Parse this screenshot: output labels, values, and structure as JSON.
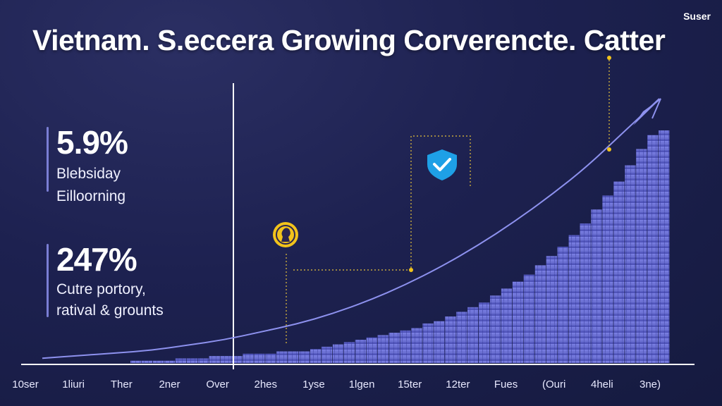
{
  "header": {
    "title": "Vietnam. S.eccera Growing Corverencte. Catter",
    "user_label": "Suser"
  },
  "stats": [
    {
      "value": "5.9%",
      "caption_lines": [
        "Blebsiday",
        "Eilloorning"
      ]
    },
    {
      "value": "247%",
      "caption_lines": [
        "Cutre portory,",
        "ratival & grounts"
      ]
    }
  ],
  "icons": {
    "shield": "shield-check-icon",
    "coin": "coin-icon",
    "trend_arrow": "trend-arrow-icon"
  },
  "colors": {
    "background": "#1d2150",
    "bars": "#5b5fc8",
    "bars_light": "#7e83e6",
    "trend_line": "#8d91ee",
    "marker": "#f2c31b",
    "shield": "#1ea0e6",
    "axis": "#ffffff"
  },
  "chart_data": {
    "type": "bar",
    "x_labels": [
      "10ser",
      "1liuri",
      "Ther",
      "2ner",
      "Over",
      "2hes",
      "1yse",
      "1lgen",
      "15ter",
      "12ter",
      "Fues",
      "(Ouri",
      "4heli",
      "3ne)"
    ],
    "values": [
      1,
      1,
      1,
      1,
      2,
      2,
      2,
      3,
      3,
      3,
      4,
      4,
      4,
      5,
      5,
      5,
      6,
      7,
      8,
      9,
      10,
      11,
      12,
      13,
      14,
      15,
      17,
      18,
      20,
      22,
      24,
      26,
      29,
      32,
      35,
      38,
      42,
      46,
      50,
      55,
      60,
      66,
      72,
      78,
      85,
      92,
      98,
      100
    ],
    "trend": [
      1,
      2,
      3,
      4,
      6,
      8,
      11,
      14,
      18,
      23,
      29,
      36,
      44,
      53,
      63,
      74,
      87,
      100
    ],
    "ylim": [
      0,
      100
    ],
    "grid": false,
    "legend": "none"
  }
}
